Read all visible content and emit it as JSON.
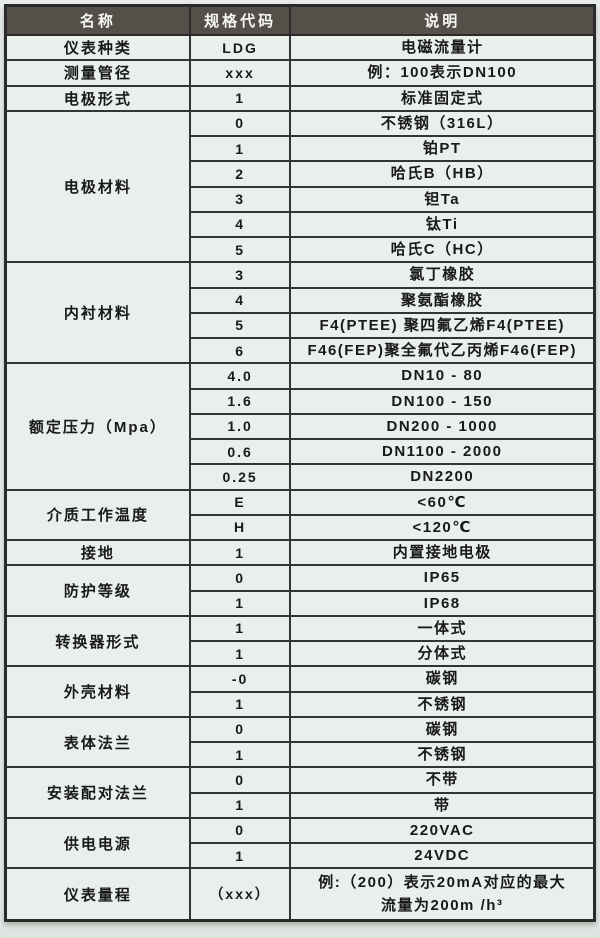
{
  "table": {
    "header": {
      "columns": [
        "名称",
        "规格代码",
        "说明"
      ],
      "bg_color": "#545049",
      "text_color": "#f6f6f4"
    },
    "row_bg_color": "#e9efea",
    "border_color": "#2b2b2b",
    "groups": [
      {
        "name": "仪表种类",
        "rows": [
          {
            "code": "LDG",
            "desc": "电磁流量计"
          }
        ]
      },
      {
        "name": "测量管径",
        "rows": [
          {
            "code": "xxx",
            "desc": "例：100表示DN100"
          }
        ]
      },
      {
        "name": "电极形式",
        "rows": [
          {
            "code": "1",
            "desc": "标准固定式"
          }
        ]
      },
      {
        "name": "电极材料",
        "rows": [
          {
            "code": "0",
            "desc": "不锈钢（316L）"
          },
          {
            "code": "1",
            "desc": "铂PT"
          },
          {
            "code": "2",
            "desc": "哈氏B（HB）"
          },
          {
            "code": "3",
            "desc": "钽Ta"
          },
          {
            "code": "4",
            "desc": "钛Ti"
          },
          {
            "code": "5",
            "desc": "哈氏C（HC）"
          }
        ]
      },
      {
        "name": "内衬材料",
        "rows": [
          {
            "code": "3",
            "desc": "氯丁橡胶"
          },
          {
            "code": "4",
            "desc": "聚氨酯橡胶"
          },
          {
            "code": "5",
            "desc": "F4(PTEE) 聚四氟乙烯F4(PTEE)"
          },
          {
            "code": "6",
            "desc": "F46(FEP)聚全氟代乙丙烯F46(FEP)"
          }
        ]
      },
      {
        "name": "额定压力（Mpa）",
        "rows": [
          {
            "code": "4.0",
            "desc": "DN10 - 80"
          },
          {
            "code": "1.6",
            "desc": "DN100 - 150"
          },
          {
            "code": "1.0",
            "desc": "DN200 - 1000"
          },
          {
            "code": "0.6",
            "desc": "DN1100 - 2000"
          },
          {
            "code": "0.25",
            "desc": "DN2200"
          }
        ]
      },
      {
        "name": "介质工作温度",
        "rows": [
          {
            "code": "E",
            "desc": "<60℃"
          },
          {
            "code": "H",
            "desc": "<120℃"
          }
        ]
      },
      {
        "name": "接地",
        "rows": [
          {
            "code": "1",
            "desc": "内置接地电极"
          }
        ]
      },
      {
        "name": "防护等级",
        "rows": [
          {
            "code": "0",
            "desc": "IP65"
          },
          {
            "code": "1",
            "desc": "IP68"
          }
        ]
      },
      {
        "name": "转换器形式",
        "rows": [
          {
            "code": "1",
            "desc": "一体式"
          },
          {
            "code": "1",
            "desc": "分体式"
          }
        ]
      },
      {
        "name": "外壳材料",
        "rows": [
          {
            "code": "-0",
            "desc": "碳钢"
          },
          {
            "code": "1",
            "desc": "不锈钢"
          }
        ]
      },
      {
        "name": "表体法兰",
        "rows": [
          {
            "code": "0",
            "desc": "碳钢"
          },
          {
            "code": "1",
            "desc": "不锈钢"
          }
        ]
      },
      {
        "name": "安装配对法兰",
        "rows": [
          {
            "code": "0",
            "desc": "不带"
          },
          {
            "code": "1",
            "desc": "带"
          }
        ]
      },
      {
        "name": "供电电源",
        "rows": [
          {
            "code": "0",
            "desc": "220VAC"
          },
          {
            "code": "1",
            "desc": "24VDC"
          }
        ]
      },
      {
        "name": "仪表量程",
        "rows": [
          {
            "code": "（xxx）",
            "desc": "例:（200）表示20mA对应的最大\n流量为200m /h³",
            "tall": true
          }
        ]
      }
    ]
  }
}
